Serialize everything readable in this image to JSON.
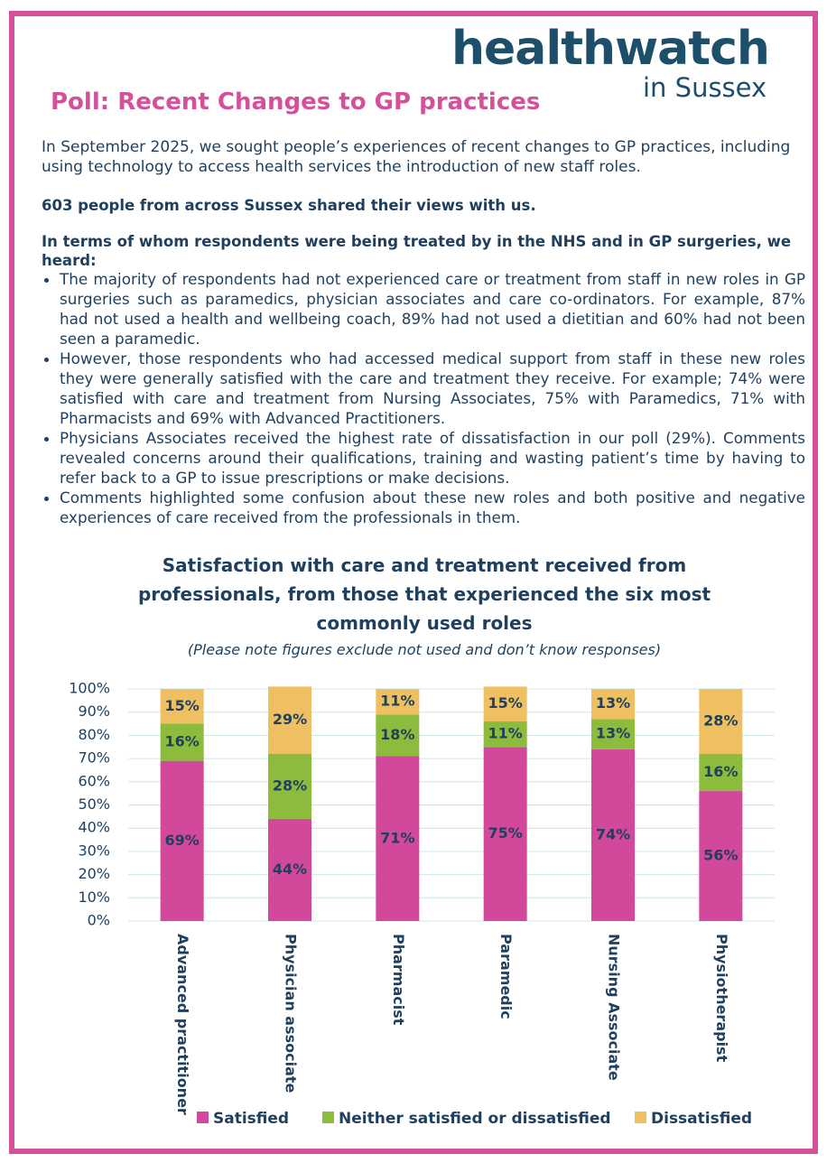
{
  "logo": {
    "name": "healthwatch",
    "region": "in Sussex"
  },
  "document": {
    "title": "Poll: Recent Changes to GP practices",
    "intro": "In September 2025, we sought people’s experiences of recent changes to GP practices, including using technology to access health services the introduction of new staff roles.",
    "highlight": "603 people from across Sussex shared their views with us.",
    "lead": "In terms of whom respondents were being treated by in the NHS and in GP surgeries, we heard:",
    "bullets": [
      "The majority of respondents had not experienced care or treatment from staff in new roles in GP surgeries such as paramedics, physician associates and care co-ordinators. For example, 87% had not used a health and wellbeing coach, 89% had not used a dietitian and 60% had not been seen a paramedic.",
      "However, those respondents who had accessed medical support from staff in these new roles they were generally satisfied with the care and treatment they receive. For example; 74% were satisfied with care and treatment from Nursing Associates, 75% with Paramedics, 71% with Pharmacists and 69% with Advanced Practitioners.",
      "Physicians Associates received the highest rate of dissatisfaction in our poll (29%). Comments revealed concerns around their qualifications, training and wasting patient’s time by having to refer back to a GP to issue prescriptions or make decisions.",
      "Comments highlighted some confusion about these new roles and both positive and negative experiences of care received from the professionals in them."
    ]
  },
  "chart_data": {
    "type": "stacked_bar",
    "title": "Satisfaction with care and treatment received from professionals,  from those that experienced the six most commonly used roles",
    "subtitle": "(Please note figures exclude not used and don’t know responses)",
    "categories": [
      "Advanced practitioner",
      "Physician associate",
      "Pharmacist",
      "Paramedic",
      "Nursing Associate",
      "Physiotherapist"
    ],
    "series": [
      {
        "name": "Satisfied",
        "color": "#d2489a",
        "values": [
          69,
          44,
          71,
          75,
          74,
          56
        ],
        "value_labels": [
          "69%",
          "44%",
          "71%",
          "75%",
          "74%",
          "56%"
        ]
      },
      {
        "name": "Neither satisfied or dissatisfied",
        "color": "#8dbb3b",
        "values": [
          16,
          28,
          18,
          11,
          13,
          16
        ],
        "value_labels": [
          "16%",
          "28%",
          "18%",
          "11%",
          "13%",
          "16%"
        ]
      },
      {
        "name": "Dissatisfied",
        "color": "#efc062",
        "values": [
          15,
          29,
          11,
          15,
          13,
          28
        ],
        "value_labels": [
          "15%",
          "29%",
          "11%",
          "15%",
          "13%",
          "28%"
        ]
      }
    ],
    "ylim": [
      0,
      100
    ],
    "yticks": [
      {
        "value": 0,
        "label": "0%"
      },
      {
        "value": 10,
        "label": "10%"
      },
      {
        "value": 20,
        "label": "20%"
      },
      {
        "value": 30,
        "label": "30%"
      },
      {
        "value": 40,
        "label": "40%"
      },
      {
        "value": 50,
        "label": "50%"
      },
      {
        "value": 60,
        "label": "60%"
      },
      {
        "value": 70,
        "label": "70%"
      },
      {
        "value": 80,
        "label": "80%"
      },
      {
        "value": 90,
        "label": "90%"
      },
      {
        "value": 100,
        "label": "100%"
      }
    ],
    "grid": true,
    "legend": "bottom"
  }
}
